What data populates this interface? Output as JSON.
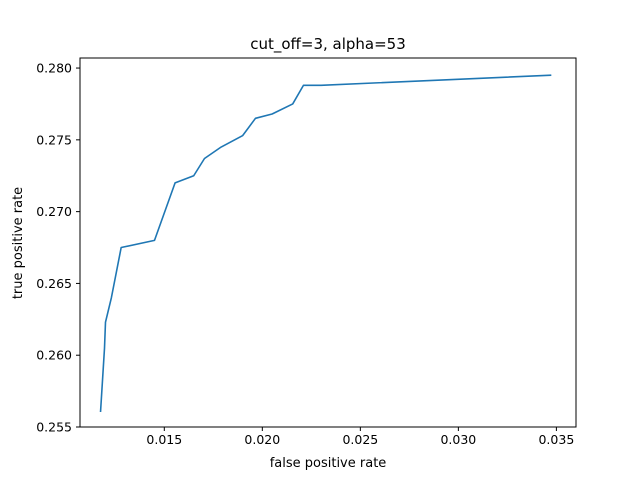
{
  "chart_data": {
    "type": "line",
    "title": "cut_off=3, alpha=53",
    "xlabel": "false positive rate",
    "ylabel": "true positive rate",
    "xlim": [
      0.0107,
      0.036
    ],
    "ylim": [
      0.255,
      0.2807
    ],
    "x_ticks": [
      0.015,
      0.02,
      0.025,
      0.03,
      0.035
    ],
    "x_tick_labels": [
      "0.015",
      "0.020",
      "0.025",
      "0.030",
      "0.035"
    ],
    "y_ticks": [
      0.255,
      0.26,
      0.265,
      0.27,
      0.275,
      0.28
    ],
    "y_tick_labels": [
      "0.255",
      "0.260",
      "0.265",
      "0.270",
      "0.275",
      "0.280"
    ],
    "grid": false,
    "legend": "none",
    "series": [
      {
        "color": "#1f77b4",
        "x": [
          0.01175,
          0.01195,
          0.012,
          0.0123,
          0.0128,
          0.0145,
          0.01555,
          0.0165,
          0.01705,
          0.0179,
          0.019,
          0.01965,
          0.0205,
          0.02155,
          0.0221,
          0.023,
          0.0347
        ],
        "y": [
          0.2561,
          0.2605,
          0.2623,
          0.264,
          0.2675,
          0.268,
          0.272,
          0.2725,
          0.2737,
          0.2745,
          0.2753,
          0.2765,
          0.2768,
          0.2775,
          0.2788,
          0.2788,
          0.2795
        ]
      }
    ]
  }
}
